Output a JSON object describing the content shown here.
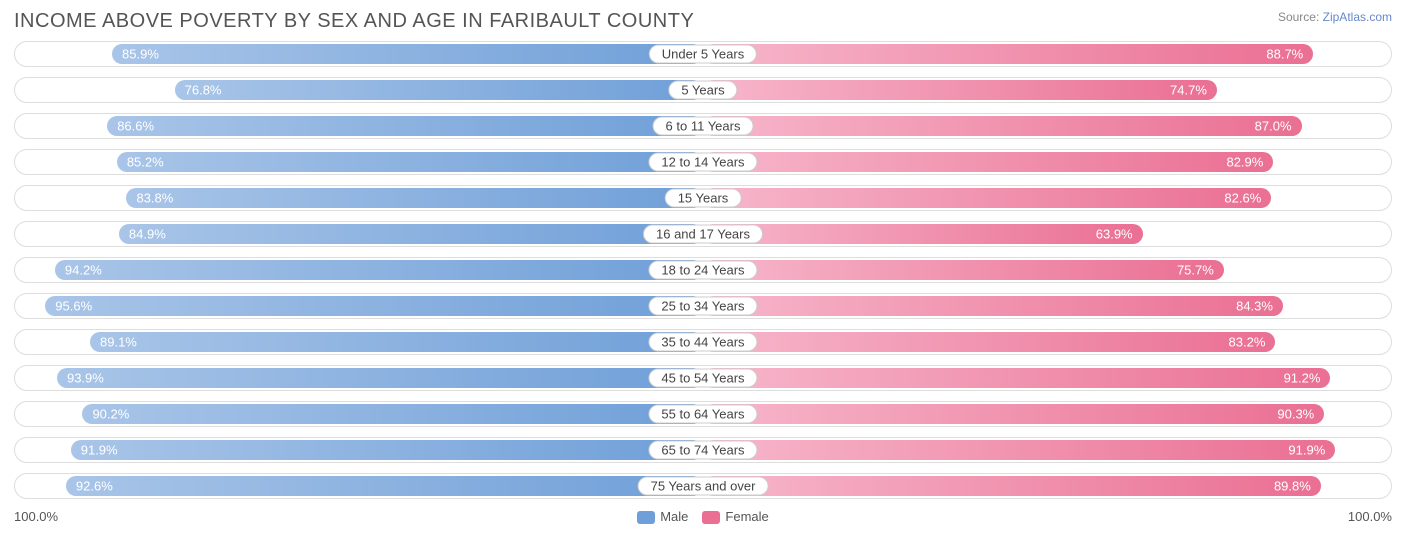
{
  "title": "INCOME ABOVE POVERTY BY SEX AND AGE IN FARIBAULT COUNTY",
  "source_prefix": "Source: ",
  "source_name": "ZipAtlas.com",
  "chart": {
    "type": "diverging-bar",
    "male_gradient_from": "#a9c5e8",
    "male_gradient_to": "#6f9fd8",
    "female_gradient_from": "#f7b7cc",
    "female_gradient_to": "#ea6f93",
    "track_border": "#dddddd",
    "label_border": "#cccccc",
    "background": "#ffffff",
    "value_text_color": "#ffffff",
    "axis_left_label": "100.0%",
    "axis_right_label": "100.0%",
    "legend": {
      "male": "Male",
      "female": "Female"
    },
    "rows": [
      {
        "category": "Under 5 Years",
        "male": 85.9,
        "female": 88.7,
        "male_label": "85.9%",
        "female_label": "88.7%"
      },
      {
        "category": "5 Years",
        "male": 76.8,
        "female": 74.7,
        "male_label": "76.8%",
        "female_label": "74.7%"
      },
      {
        "category": "6 to 11 Years",
        "male": 86.6,
        "female": 87.0,
        "male_label": "86.6%",
        "female_label": "87.0%"
      },
      {
        "category": "12 to 14 Years",
        "male": 85.2,
        "female": 82.9,
        "male_label": "85.2%",
        "female_label": "82.9%"
      },
      {
        "category": "15 Years",
        "male": 83.8,
        "female": 82.6,
        "male_label": "83.8%",
        "female_label": "82.6%"
      },
      {
        "category": "16 and 17 Years",
        "male": 84.9,
        "female": 63.9,
        "male_label": "84.9%",
        "female_label": "63.9%"
      },
      {
        "category": "18 to 24 Years",
        "male": 94.2,
        "female": 75.7,
        "male_label": "94.2%",
        "female_label": "75.7%"
      },
      {
        "category": "25 to 34 Years",
        "male": 95.6,
        "female": 84.3,
        "male_label": "95.6%",
        "female_label": "84.3%"
      },
      {
        "category": "35 to 44 Years",
        "male": 89.1,
        "female": 83.2,
        "male_label": "89.1%",
        "female_label": "83.2%"
      },
      {
        "category": "45 to 54 Years",
        "male": 93.9,
        "female": 91.2,
        "male_label": "93.9%",
        "female_label": "91.2%"
      },
      {
        "category": "55 to 64 Years",
        "male": 90.2,
        "female": 90.3,
        "male_label": "90.2%",
        "female_label": "90.3%"
      },
      {
        "category": "65 to 74 Years",
        "male": 91.9,
        "female": 91.9,
        "male_label": "91.9%",
        "female_label": "91.9%"
      },
      {
        "category": "75 Years and over",
        "male": 92.6,
        "female": 89.8,
        "male_label": "92.6%",
        "female_label": "89.8%"
      }
    ]
  }
}
